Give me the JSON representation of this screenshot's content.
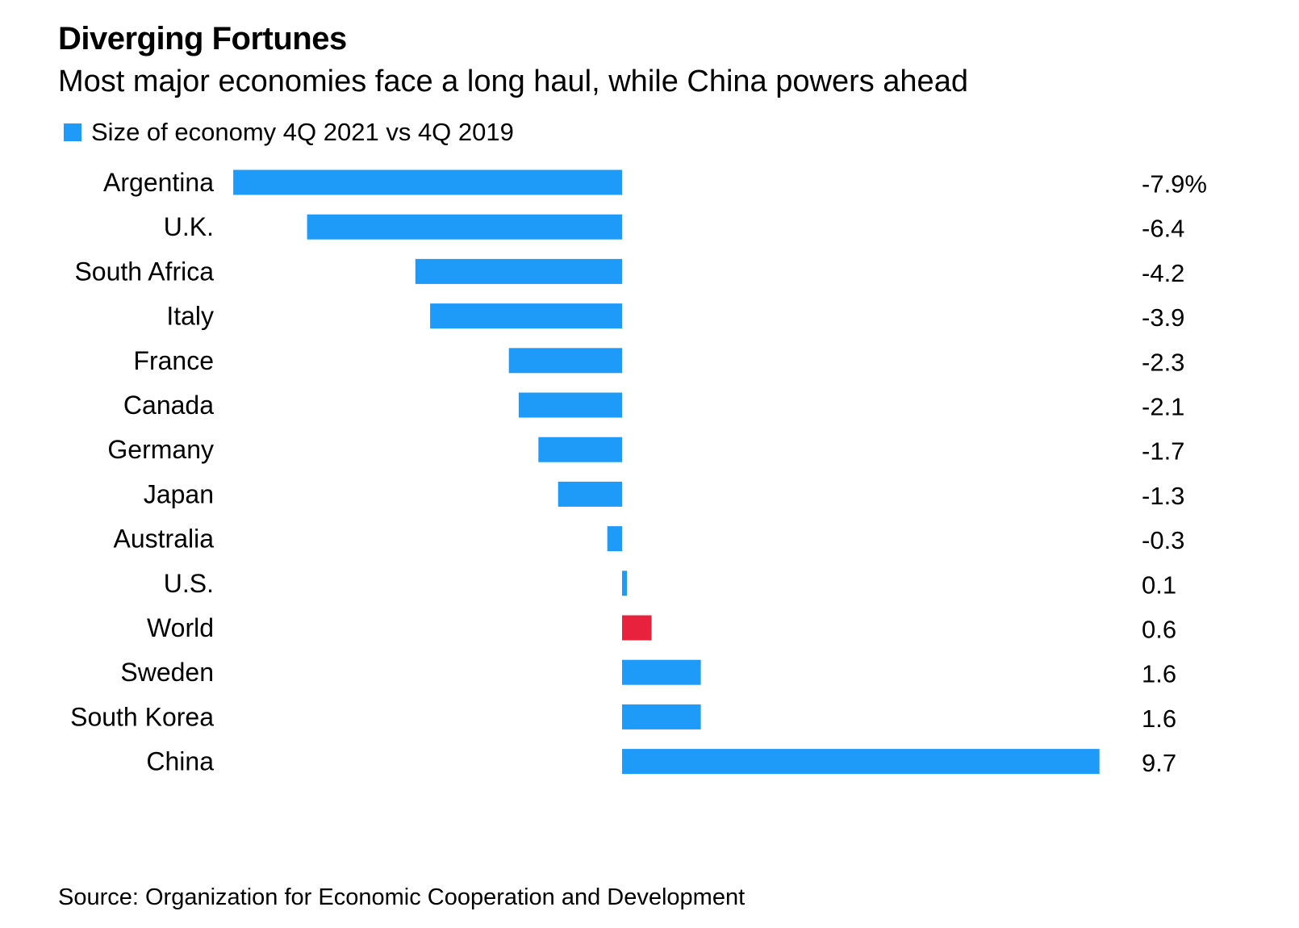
{
  "title": "Diverging Fortunes",
  "subtitle": "Most major economies face a long haul, while China powers ahead",
  "legend": {
    "label": "Size of economy 4Q 2021 vs 4Q 2019",
    "color": "#1e9bf9"
  },
  "source": "Source: Organization for Economic Cooperation and Development",
  "colors": {
    "bar": "#1e9bf9",
    "highlight": "#e8213d",
    "text": "#000000"
  },
  "chart_data": {
    "type": "bar",
    "orientation": "horizontal",
    "title": "Diverging Fortunes",
    "subtitle": "Most major economies face a long haul, while China powers ahead",
    "series": [
      {
        "name": "Size of economy 4Q 2021 vs 4Q 2019",
        "values": [
          -7.9,
          -6.4,
          -4.2,
          -3.9,
          -2.3,
          -2.1,
          -1.7,
          -1.3,
          -0.3,
          0.1,
          0.6,
          1.6,
          1.6,
          9.7
        ]
      }
    ],
    "categories": [
      "Argentina",
      "U.K.",
      "South Africa",
      "Italy",
      "France",
      "Canada",
      "Germany",
      "Japan",
      "Australia",
      "U.S.",
      "World",
      "Sweden",
      "South Korea",
      "China"
    ],
    "values": [
      -7.9,
      -6.4,
      -4.2,
      -3.9,
      -2.3,
      -2.1,
      -1.7,
      -1.3,
      -0.3,
      0.1,
      0.6,
      1.6,
      1.6,
      9.7
    ],
    "value_labels": [
      "-7.9%",
      "-6.4",
      "-4.2",
      "-3.9",
      "-2.3",
      "-2.1",
      "-1.7",
      "-1.3",
      "-0.3",
      "0.1",
      "0.6",
      "1.6",
      "1.6",
      "9.7"
    ],
    "highlight": [
      "World"
    ],
    "xlim": [
      -7.9,
      9.7
    ],
    "xlabel": "",
    "ylabel": "",
    "unit": "%",
    "grid": false,
    "legend_position": "top-left"
  }
}
